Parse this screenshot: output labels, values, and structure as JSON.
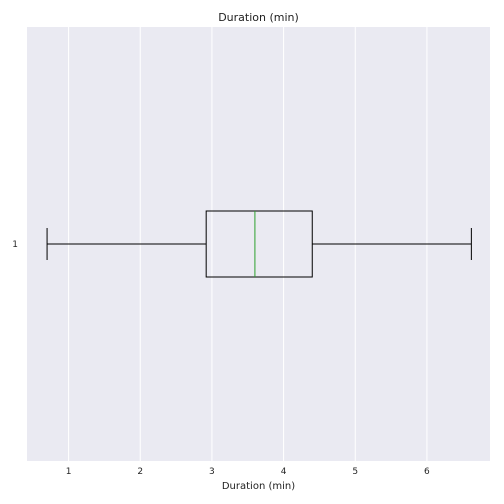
{
  "chart_data": {
    "type": "boxplot",
    "orientation": "horizontal",
    "title": "Duration (min)",
    "xlabel": "Duration (min)",
    "ylabel": "",
    "xlim": [
      0.42,
      6.88
    ],
    "xticks": [
      1,
      2,
      3,
      4,
      5,
      6
    ],
    "categories": [
      "1"
    ],
    "series": [
      {
        "whisker_low": 0.7,
        "q1": 2.92,
        "median": 3.6,
        "q3": 4.4,
        "whisker_high": 6.62
      }
    ],
    "grid": true,
    "colors": {
      "background": "#eaeaf2",
      "grid": "#ffffff",
      "box": "#000000",
      "median": "#2ca02c"
    }
  }
}
